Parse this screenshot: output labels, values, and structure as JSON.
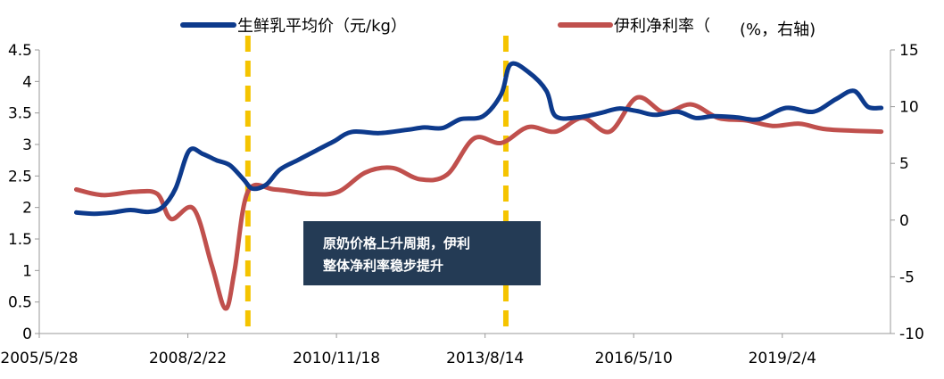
{
  "chart_data": {
    "type": "line",
    "x_ticks": [
      "2005/5/28",
      "2008/2/22",
      "2010/11/18",
      "2013/8/14",
      "2016/5/10",
      "2019/2/4"
    ],
    "y_left_ticks": [
      "0",
      "0.5",
      "1",
      "1.5",
      "2",
      "2.5",
      "3",
      "3.5",
      "4",
      "4.5"
    ],
    "y_right_ticks": [
      "-10",
      "-5",
      "0",
      "5",
      "10",
      "15"
    ],
    "ylim_left": [
      0,
      4.5
    ],
    "ylim_right": [
      -10,
      15
    ],
    "legend": {
      "placement": "top",
      "milk_label": "生鲜乳平均价（元/kg）",
      "margin_label": "伊利净利率（",
      "margin_label_tail": "(%，右轴)"
    },
    "annotation": {
      "line1": "原奶价格上升周期，伊利",
      "line2": "整体净利率稳步提升",
      "bg_color": "#243b55"
    },
    "vlines": [
      "2009/4/1",
      "2014/1/1"
    ],
    "series": [
      {
        "name": "生鲜乳平均价（元/kg）",
        "axis": "left",
        "color": "#0d3a8c",
        "points": [
          [
            "2006/2/1",
            1.92
          ],
          [
            "2006/6/1",
            1.9
          ],
          [
            "2006/10/1",
            1.92
          ],
          [
            "2007/2/1",
            1.96
          ],
          [
            "2007/6/1",
            1.93
          ],
          [
            "2007/9/1",
            2.0
          ],
          [
            "2007/12/1",
            2.3
          ],
          [
            "2008/3/1",
            2.9
          ],
          [
            "2008/6/1",
            2.85
          ],
          [
            "2008/9/1",
            2.75
          ],
          [
            "2008/12/1",
            2.67
          ],
          [
            "2009/3/1",
            2.45
          ],
          [
            "2009/5/1",
            2.3
          ],
          [
            "2009/8/1",
            2.36
          ],
          [
            "2009/11/1",
            2.6
          ],
          [
            "2010/3/1",
            2.75
          ],
          [
            "2010/7/1",
            2.9
          ],
          [
            "2010/11/1",
            3.05
          ],
          [
            "2011/3/1",
            3.2
          ],
          [
            "2011/9/1",
            3.18
          ],
          [
            "2012/3/1",
            3.23
          ],
          [
            "2012/7/1",
            3.27
          ],
          [
            "2012/11/1",
            3.26
          ],
          [
            "2013/3/1",
            3.4
          ],
          [
            "2013/8/1",
            3.45
          ],
          [
            "2013/12/1",
            3.8
          ],
          [
            "2014/2/1",
            4.27
          ],
          [
            "2014/6/1",
            4.15
          ],
          [
            "2014/10/1",
            3.85
          ],
          [
            "2014/12/1",
            3.45
          ],
          [
            "2015/5/1",
            3.43
          ],
          [
            "2015/10/1",
            3.5
          ],
          [
            "2016/2/1",
            3.57
          ],
          [
            "2016/6/1",
            3.53
          ],
          [
            "2016/10/1",
            3.47
          ],
          [
            "2017/3/1",
            3.52
          ],
          [
            "2017/7/1",
            3.42
          ],
          [
            "2017/11/1",
            3.45
          ],
          [
            "2018/4/1",
            3.43
          ],
          [
            "2018/9/1",
            3.4
          ],
          [
            "2019/3/1",
            3.58
          ],
          [
            "2019/9/1",
            3.52
          ],
          [
            "2020/2/1",
            3.72
          ],
          [
            "2020/6/1",
            3.85
          ],
          [
            "2020/9/1",
            3.6
          ],
          [
            "2020/12/1",
            3.58
          ]
        ]
      },
      {
        "name": "伊利净利率（%，右轴）",
        "axis": "right",
        "color": "#c0504d",
        "points": [
          [
            "2006/2/1",
            2.7
          ],
          [
            "2006/8/1",
            2.2
          ],
          [
            "2007/3/1",
            2.5
          ],
          [
            "2007/8/1",
            2.3
          ],
          [
            "2007/11/1",
            0.1
          ],
          [
            "2008/4/1",
            1.0
          ],
          [
            "2008/8/1",
            -4.0
          ],
          [
            "2008/11/1",
            -7.8
          ],
          [
            "2009/1/1",
            -4.5
          ],
          [
            "2009/4/1",
            2.5
          ],
          [
            "2009/10/1",
            2.7
          ],
          [
            "2010/6/1",
            2.3
          ],
          [
            "2010/12/1",
            2.5
          ],
          [
            "2011/6/1",
            4.2
          ],
          [
            "2011/12/1",
            4.6
          ],
          [
            "2012/6/1",
            3.6
          ],
          [
            "2012/12/1",
            4.0
          ],
          [
            "2013/6/1",
            7.2
          ],
          [
            "2013/12/1",
            6.8
          ],
          [
            "2014/6/1",
            8.2
          ],
          [
            "2014/12/1",
            7.8
          ],
          [
            "2015/6/1",
            9.0
          ],
          [
            "2015/12/1",
            7.8
          ],
          [
            "2016/6/1",
            10.8
          ],
          [
            "2016/12/1",
            9.5
          ],
          [
            "2017/6/1",
            10.2
          ],
          [
            "2017/12/1",
            9.0
          ],
          [
            "2018/6/1",
            8.8
          ],
          [
            "2018/12/1",
            8.3
          ],
          [
            "2019/6/1",
            8.5
          ],
          [
            "2019/12/1",
            8.0
          ],
          [
            "2020/12/1",
            7.8
          ]
        ]
      }
    ]
  }
}
